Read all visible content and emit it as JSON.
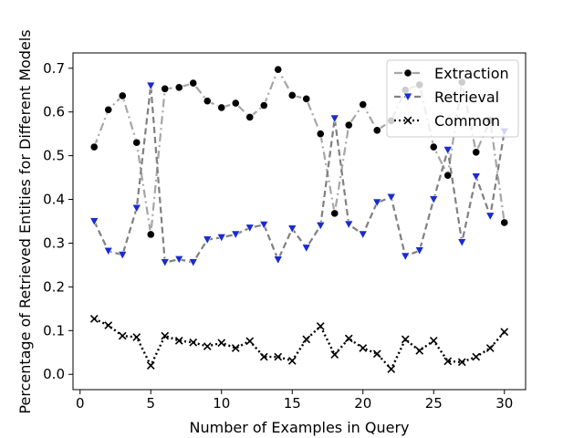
{
  "chart_data": {
    "type": "line",
    "xlabel": "Number of Examples in Query",
    "ylabel": "Percentage of Retrieved Entities for Different Models",
    "xlim": [
      -0.5,
      31.5
    ],
    "ylim": [
      -0.035,
      0.735
    ],
    "xticks": [
      0,
      5,
      10,
      15,
      20,
      25,
      30
    ],
    "yticks": [
      0.0,
      0.1,
      0.2,
      0.3,
      0.4,
      0.5,
      0.6,
      0.7
    ],
    "grid": false,
    "legend_position": "top-right",
    "x": [
      1,
      2,
      3,
      4,
      5,
      6,
      7,
      8,
      9,
      10,
      11,
      12,
      13,
      14,
      15,
      16,
      17,
      18,
      19,
      20,
      21,
      22,
      23,
      24,
      25,
      26,
      27,
      28,
      29,
      30
    ],
    "series": [
      {
        "name": "Extraction",
        "color": "#a6a6a6",
        "marker_color": "#000000",
        "marker": "circle",
        "linestyle": "dashdot",
        "values": [
          0.52,
          0.605,
          0.637,
          0.53,
          0.32,
          0.653,
          0.656,
          0.666,
          0.625,
          0.61,
          0.62,
          0.588,
          0.615,
          0.697,
          0.638,
          0.63,
          0.55,
          0.368,
          0.57,
          0.617,
          0.558,
          0.58,
          0.65,
          0.662,
          0.52,
          0.455,
          0.668,
          0.508,
          0.58,
          0.347
        ]
      },
      {
        "name": "Retrieval",
        "color": "#808080",
        "marker_color": "#1a2bd0",
        "marker": "triangle-down",
        "linestyle": "dashed",
        "values": [
          0.35,
          0.282,
          0.273,
          0.38,
          0.66,
          0.256,
          0.263,
          0.256,
          0.308,
          0.313,
          0.32,
          0.335,
          0.342,
          0.262,
          0.333,
          0.289,
          0.34,
          0.585,
          0.343,
          0.32,
          0.393,
          0.405,
          0.27,
          0.283,
          0.4,
          0.513,
          0.302,
          0.452,
          0.362,
          0.555
        ]
      },
      {
        "name": "Common",
        "color": "#000000",
        "marker_color": "#000000",
        "marker": "x",
        "linestyle": "dotted",
        "values": [
          0.127,
          0.112,
          0.088,
          0.085,
          0.02,
          0.088,
          0.077,
          0.073,
          0.064,
          0.072,
          0.06,
          0.076,
          0.04,
          0.04,
          0.031,
          0.08,
          0.11,
          0.045,
          0.082,
          0.06,
          0.047,
          0.012,
          0.08,
          0.054,
          0.077,
          0.03,
          0.028,
          0.04,
          0.06,
          0.097
        ]
      }
    ]
  }
}
